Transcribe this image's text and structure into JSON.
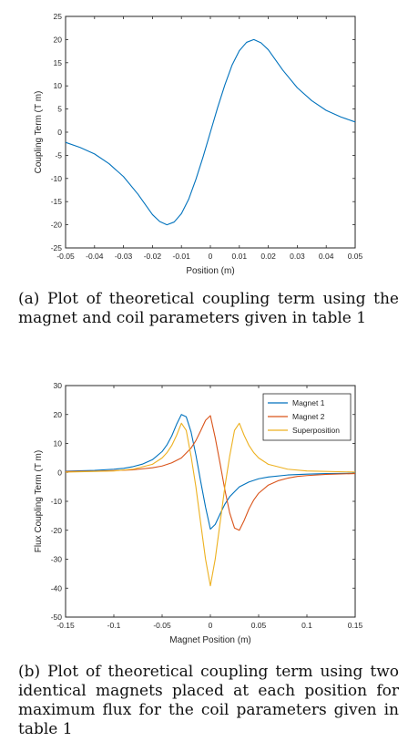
{
  "chart_data": [
    {
      "type": "line",
      "xlabel": "Position (m)",
      "ylabel": "Coupling Term (T m)",
      "xlim": [
        -0.05,
        0.05
      ],
      "ylim": [
        -25,
        25
      ],
      "xticks": [
        "-0.05",
        "-0.04",
        "-0.03",
        "-0.02",
        "-0.01",
        "0",
        "0.01",
        "0.02",
        "0.03",
        "0.04",
        "0.05"
      ],
      "yticks": [
        "25",
        "20",
        "15",
        "10",
        "5",
        "0",
        "-5",
        "-10",
        "-15",
        "-20",
        "-25"
      ],
      "grid": false,
      "series": [
        {
          "color": "#0072bd",
          "x": [
            -0.05,
            -0.045,
            -0.04,
            -0.035,
            -0.03,
            -0.025,
            -0.02,
            -0.0175,
            -0.015,
            -0.0125,
            -0.01,
            -0.0075,
            -0.005,
            -0.0025,
            0,
            0.0025,
            0.005,
            0.0075,
            0.01,
            0.0125,
            0.015,
            0.0175,
            0.02,
            0.025,
            0.03,
            0.035,
            0.04,
            0.045,
            0.05
          ],
          "y": [
            -2.2,
            -3.3,
            -4.7,
            -6.8,
            -9.6,
            -13.4,
            -17.8,
            -19.3,
            -20.0,
            -19.4,
            -17.6,
            -14.5,
            -10.2,
            -5.3,
            0,
            5.3,
            10.2,
            14.5,
            17.6,
            19.4,
            20.0,
            19.3,
            17.8,
            13.4,
            9.6,
            6.8,
            4.7,
            3.3,
            2.2
          ]
        }
      ]
    },
    {
      "type": "line",
      "xlabel": "Magnet Position (m)",
      "ylabel": "Flux Coupling Term (T m)",
      "xlim": [
        -0.15,
        0.15
      ],
      "ylim": [
        -50,
        30
      ],
      "xticks": [
        "-0.15",
        "-0.1",
        "-0.05",
        "0",
        "0.05",
        "0.1",
        "0.15"
      ],
      "yticks": [
        "30",
        "20",
        "10",
        "0",
        "-10",
        "-20",
        "-30",
        "-40",
        "-50"
      ],
      "grid": false,
      "legend_position": "top-right",
      "series": [
        {
          "name": "Magnet 1",
          "color": "#0072bd",
          "x": [
            -0.15,
            -0.12,
            -0.1,
            -0.09,
            -0.08,
            -0.07,
            -0.06,
            -0.05,
            -0.045,
            -0.04,
            -0.035,
            -0.03,
            -0.025,
            -0.02,
            -0.015,
            -0.01,
            -0.005,
            0,
            0.005,
            0.01,
            0.015,
            0.02,
            0.03,
            0.04,
            0.05,
            0.06,
            0.08,
            0.1,
            0.12,
            0.15
          ],
          "y": [
            0.4,
            0.7,
            1.1,
            1.4,
            2.0,
            2.9,
            4.4,
            7.2,
            9.5,
            12.6,
            16.6,
            20.0,
            19.2,
            14.0,
            6.0,
            -3.2,
            -12.0,
            -19.6,
            -18.0,
            -14.4,
            -11.0,
            -8.4,
            -5.0,
            -3.3,
            -2.2,
            -1.6,
            -0.9,
            -0.6,
            -0.4,
            -0.3
          ]
        },
        {
          "name": "Magnet 2",
          "color": "#d95319",
          "x": [
            -0.15,
            -0.12,
            -0.1,
            -0.08,
            -0.06,
            -0.05,
            -0.04,
            -0.03,
            -0.02,
            -0.015,
            -0.01,
            -0.005,
            0,
            0.005,
            0.01,
            0.015,
            0.02,
            0.025,
            0.03,
            0.035,
            0.04,
            0.045,
            0.05,
            0.06,
            0.07,
            0.08,
            0.09,
            0.1,
            0.12,
            0.15
          ],
          "y": [
            0.3,
            0.4,
            0.6,
            0.9,
            1.6,
            2.2,
            3.3,
            5.0,
            8.4,
            11.0,
            14.4,
            18.0,
            19.6,
            12.0,
            3.2,
            -6.0,
            -14.0,
            -19.2,
            -20.0,
            -16.6,
            -12.6,
            -9.5,
            -7.2,
            -4.4,
            -2.9,
            -2.0,
            -1.4,
            -1.1,
            -0.7,
            -0.4
          ]
        },
        {
          "name": "Superposition",
          "color": "#edb120",
          "x": [
            -0.15,
            -0.1,
            -0.08,
            -0.06,
            -0.05,
            -0.045,
            -0.04,
            -0.035,
            -0.03,
            -0.025,
            -0.02,
            -0.015,
            -0.01,
            -0.005,
            0,
            0.005,
            0.01,
            0.015,
            0.02,
            0.025,
            0.03,
            0.035,
            0.04,
            0.045,
            0.05,
            0.06,
            0.08,
            0.1,
            0.15
          ],
          "y": [
            0.1,
            0.5,
            1.1,
            2.8,
            5.0,
            6.8,
            9.3,
            12.8,
            17.0,
            14.5,
            5.6,
            -5.0,
            -17.6,
            -30.0,
            -39.2,
            -30.0,
            -17.6,
            -5.0,
            5.6,
            14.5,
            17.0,
            12.8,
            9.3,
            6.8,
            5.0,
            2.8,
            1.1,
            0.5,
            0.1
          ]
        }
      ]
    }
  ],
  "captions": {
    "a": "(a) Plot of theoretical coupling term using the magnet and coil parameters given in table 1",
    "b": "(b) Plot of theoretical coupling term using two identical magnets placed at each position for maximum flux for the coil parameters given in table 1"
  }
}
